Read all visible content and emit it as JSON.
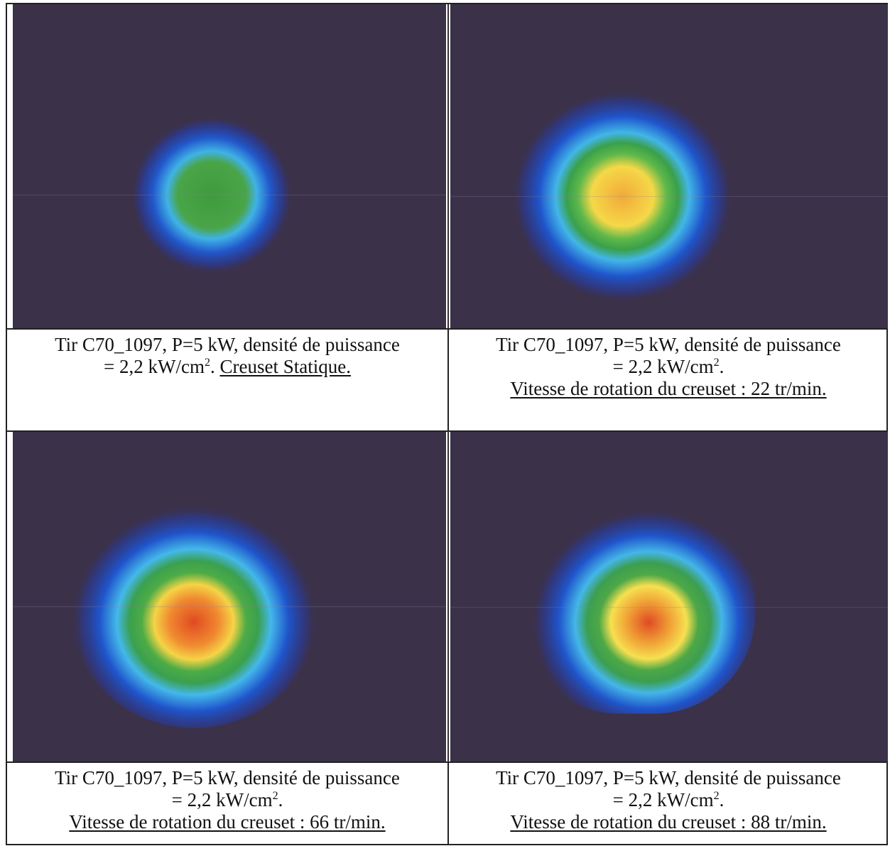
{
  "cells": [
    {
      "caption": {
        "line1": "Tir C70_1097, P=5 kW, densité de puissance",
        "line2": "= 2,2 kW/cm",
        "exponent": "2",
        "suffix": ".",
        "underlined": "Creuset Statique."
      }
    },
    {
      "caption": {
        "line1": "Tir C70_1097, P=5 kW, densité de puissance",
        "line2": "= 2,2 kW/cm",
        "exponent": "2",
        "suffix": ".",
        "underlined": "Vitesse de rotation du creuset : 22 tr/min."
      }
    },
    {
      "caption": {
        "line1": "Tir C70_1097, P=5 kW, densité de puissance",
        "line2": "= 2,2 kW/cm",
        "exponent": "2",
        "suffix": ".",
        "underlined": "Vitesse de rotation du creuset : 66 tr/min."
      }
    },
    {
      "caption": {
        "line1": "Tir C70_1097, P=5 kW, densité de puissance",
        "line2": "= 2,2 kW/cm",
        "exponent": "2",
        "suffix": ".",
        "underlined": "Vitesse de rotation du creuset : 88 tr/min."
      }
    }
  ]
}
